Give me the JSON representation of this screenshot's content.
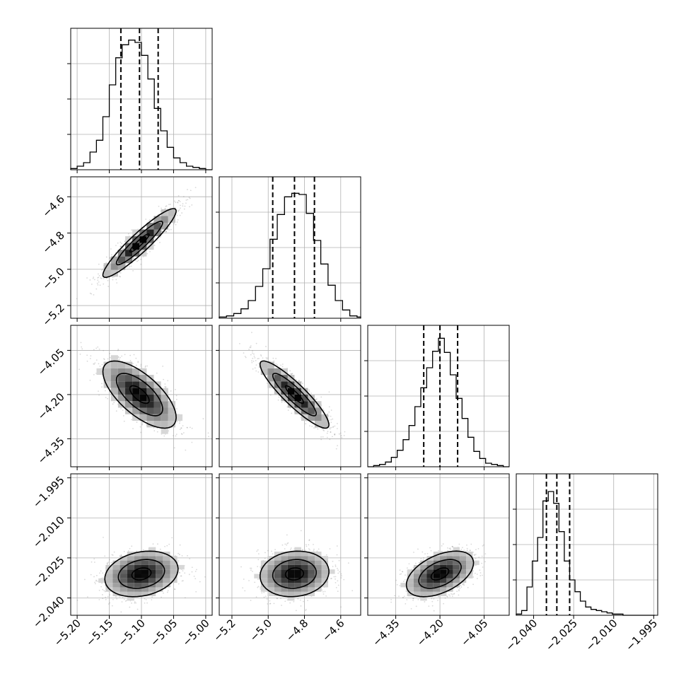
{
  "chart_data": {
    "type": "corner",
    "grid": true,
    "axes_title": "",
    "colors": {
      "line": "#000000",
      "grid": "#b0b0b0",
      "points": "#808080"
    },
    "parameters": [
      {
        "range": [
          -5.21,
          -4.99
        ],
        "ticks": [
          -5.2,
          -5.15,
          -5.1,
          -5.05,
          -5.0
        ],
        "tick_labels": [
          "−5.20",
          "−5.15",
          "−5.10",
          "−5.05",
          "−5.00"
        ],
        "quantiles": [
          -5.132,
          -5.103,
          -5.074
        ],
        "hist_ymax": 1.2,
        "hist_ticks": [
          0.3,
          0.6,
          0.9
        ],
        "hist_edges": [
          -5.21,
          -5.2,
          -5.19,
          -5.18,
          -5.17,
          -5.16,
          -5.15,
          -5.14,
          -5.13,
          -5.12,
          -5.11,
          -5.1,
          -5.09,
          -5.08,
          -5.07,
          -5.06,
          -5.05,
          -5.04,
          -5.03,
          -5.02,
          -5.01,
          -5.0,
          -4.99
        ],
        "hist_counts": [
          0.01,
          0.03,
          0.06,
          0.15,
          0.25,
          0.45,
          0.72,
          0.95,
          1.06,
          1.1,
          1.08,
          0.97,
          0.77,
          0.52,
          0.33,
          0.19,
          0.1,
          0.06,
          0.03,
          0.02,
          0.01,
          0.0
        ]
      },
      {
        "range": [
          -5.27,
          -4.49
        ],
        "ticks": [
          -5.2,
          -5.0,
          -4.8,
          -4.6
        ],
        "tick_labels": [
          "−5.2",
          "−5.0",
          "−4.8",
          "−4.6"
        ],
        "quantiles": [
          -4.975,
          -4.855,
          -4.745
        ],
        "hist_ymax": 1.2,
        "hist_ticks": [
          0.3,
          0.6,
          0.9
        ],
        "hist_edges": [
          -5.27,
          -5.23,
          -5.19,
          -5.15,
          -5.11,
          -5.07,
          -5.03,
          -4.99,
          -4.95,
          -4.91,
          -4.87,
          -4.83,
          -4.79,
          -4.75,
          -4.71,
          -4.67,
          -4.63,
          -4.59,
          -4.55,
          -4.51,
          -4.49
        ],
        "hist_counts": [
          0.01,
          0.02,
          0.04,
          0.08,
          0.15,
          0.27,
          0.42,
          0.67,
          0.88,
          1.03,
          1.06,
          1.05,
          0.89,
          0.66,
          0.46,
          0.28,
          0.15,
          0.07,
          0.02,
          0.01
        ]
      },
      {
        "range": [
          -4.445,
          -3.965
        ],
        "ticks": [
          -4.35,
          -4.2,
          -4.05
        ],
        "tick_labels": [
          "−4.35",
          "−4.20",
          "−4.05"
        ],
        "quantiles": [
          -4.255,
          -4.2,
          -4.14
        ],
        "hist_ymax": 1.2,
        "hist_ticks": [
          0.3,
          0.6,
          0.9
        ],
        "hist_edges": [
          -4.445,
          -4.425,
          -4.405,
          -4.385,
          -4.365,
          -4.345,
          -4.325,
          -4.305,
          -4.285,
          -4.265,
          -4.245,
          -4.225,
          -4.205,
          -4.185,
          -4.165,
          -4.145,
          -4.125,
          -4.105,
          -4.085,
          -4.065,
          -4.045,
          -4.025,
          -4.005,
          -3.985,
          -3.965
        ],
        "hist_counts": [
          0.0,
          0.01,
          0.02,
          0.04,
          0.08,
          0.14,
          0.23,
          0.35,
          0.51,
          0.67,
          0.84,
          0.98,
          1.09,
          0.97,
          0.78,
          0.58,
          0.41,
          0.25,
          0.13,
          0.07,
          0.03,
          0.02,
          0.01,
          0.0
        ]
      },
      {
        "range": [
          -2.0465,
          -1.9935
        ],
        "ticks": [
          -2.04,
          -2.025,
          -2.01,
          -1.995
        ],
        "tick_labels": [
          "−2.040",
          "−2.025",
          "−2.010",
          "−1.995"
        ],
        "quantiles": [
          -2.0352,
          -2.0313,
          -2.0265
        ],
        "hist_ymax": 1.2,
        "hist_ticks": [
          0.3,
          0.6,
          0.9
        ],
        "hist_edges": [
          -2.0465,
          -2.0445,
          -2.0425,
          -2.0405,
          -2.0385,
          -2.0365,
          -2.0345,
          -2.0325,
          -2.0305,
          -2.0285,
          -2.0265,
          -2.0245,
          -2.0225,
          -2.0205,
          -2.0185,
          -2.0165,
          -2.0145,
          -2.0125,
          -2.0105,
          -2.0085,
          -2.0065,
          -2.0045,
          -2.0025,
          -2.0005,
          -1.9985,
          -1.9965,
          -1.9945
        ],
        "hist_counts": [
          0.01,
          0.04,
          0.24,
          0.46,
          0.66,
          0.97,
          1.05,
          0.95,
          0.71,
          0.46,
          0.3,
          0.2,
          0.12,
          0.07,
          0.05,
          0.04,
          0.03,
          0.02,
          0.01,
          0.01,
          0.0,
          0.0,
          0.0,
          0.0,
          0.0,
          0.0
        ]
      }
    ],
    "pairs": [
      {
        "row": 1,
        "col": 0,
        "center": [
          -5.103,
          -4.855
        ],
        "sd": [
          0.03,
          0.1
        ],
        "corr": 0.93,
        "samples": 1000,
        "contour_levels": [
          0.5,
          1.2,
          1.9
        ]
      },
      {
        "row": 2,
        "col": 0,
        "center": [
          -5.103,
          -4.2
        ],
        "sd": [
          0.03,
          0.06
        ],
        "corr": -0.68,
        "samples": 1000,
        "contour_levels": [
          0.5,
          1.2,
          1.9
        ]
      },
      {
        "row": 2,
        "col": 1,
        "center": [
          -4.855,
          -4.2
        ],
        "sd": [
          0.1,
          0.06
        ],
        "corr": -0.9,
        "samples": 1000,
        "contour_levels": [
          0.5,
          1.2,
          1.9
        ]
      },
      {
        "row": 3,
        "col": 0,
        "center": [
          -5.1,
          -2.031
        ],
        "sd": [
          0.03,
          0.0045
        ],
        "corr": 0.22,
        "samples": 1000,
        "contour_levels": [
          0.5,
          1.2,
          1.9
        ]
      },
      {
        "row": 3,
        "col": 1,
        "center": [
          -4.855,
          -2.031
        ],
        "sd": [
          0.1,
          0.0045
        ],
        "corr": 0.1,
        "samples": 1000,
        "contour_levels": [
          0.5,
          1.2,
          1.9
        ]
      },
      {
        "row": 3,
        "col": 2,
        "center": [
          -4.2,
          -2.031
        ],
        "sd": [
          0.06,
          0.0045
        ],
        "corr": 0.48,
        "samples": 1000,
        "contour_levels": [
          0.5,
          1.2,
          1.9
        ]
      }
    ]
  }
}
